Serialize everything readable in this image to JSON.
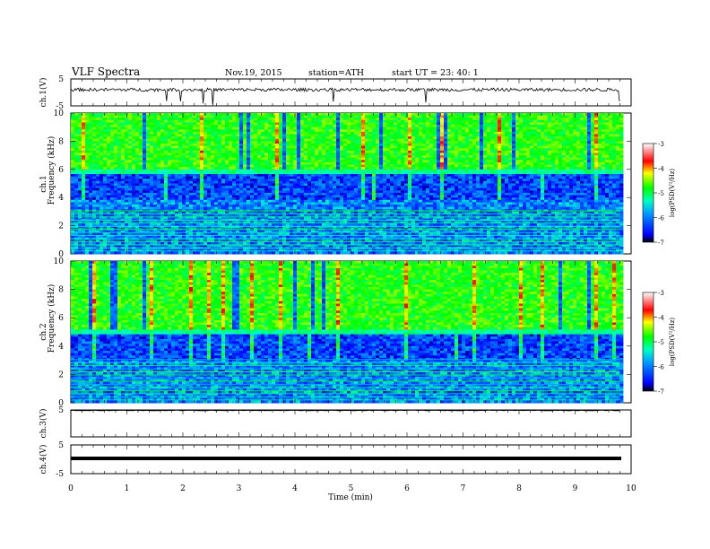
{
  "header": {
    "title": "VLF  Spectra",
    "date": "Nov.19, 2015",
    "station": "station=ATH",
    "start": "start  UT  =    23: 40: 1"
  },
  "chart_data": [
    {
      "type": "line",
      "panel": "ch1",
      "ylabel": "ch.1(V)",
      "yticks": [
        "5",
        "-5"
      ],
      "ylim": [
        -5,
        5
      ],
      "xlim": [
        0,
        10
      ],
      "series_desc": "noisy trace about +1 V with downward spikes"
    },
    {
      "type": "heatmap",
      "panel": "ch1-spectrogram",
      "ylabel": "ch.1",
      "ylabel2": "Frequency  (kHz)",
      "yticks": [
        "0",
        "2",
        "4",
        "6",
        "8",
        "10"
      ],
      "ylim": [
        0,
        10
      ],
      "xlim": [
        0,
        9.8
      ],
      "colorbar": {
        "label": "log(PSD(V²/Hz)",
        "ticks": [
          "-3",
          "-4",
          "-5",
          "-6",
          "-7"
        ],
        "range": [
          -7,
          -3
        ]
      }
    },
    {
      "type": "heatmap",
      "panel": "ch2-spectrogram",
      "ylabel": "ch.2",
      "ylabel2": "Frequency  (kHz)",
      "yticks": [
        "0",
        "2",
        "4",
        "6",
        "8",
        "10"
      ],
      "ylim": [
        0,
        10
      ],
      "xlim": [
        0,
        9.8
      ],
      "colorbar": {
        "label": "log(PSD(V²/Hz)",
        "ticks": [
          "-3",
          "-4",
          "-5",
          "-6",
          "-7"
        ],
        "range": [
          -7,
          -3
        ]
      }
    },
    {
      "type": "line",
      "panel": "ch3",
      "ylabel": "ch.3(V)",
      "yticks": [
        "5"
      ],
      "ylim": [
        -5,
        5
      ],
      "xlim": [
        0,
        10
      ],
      "series_desc": "flat near +5 V"
    },
    {
      "type": "line",
      "panel": "ch4",
      "ylabel": "ch.4(V)",
      "yticks": [
        "5",
        "-5"
      ],
      "ylim": [
        -5,
        5
      ],
      "xlim": [
        0,
        10
      ],
      "series_desc": "thick flat trace near 0 V"
    }
  ],
  "xaxis": {
    "label": "Time  (min)",
    "ticks": [
      "0",
      "1",
      "2",
      "3",
      "4",
      "5",
      "6",
      "7",
      "8",
      "9",
      "10"
    ]
  }
}
